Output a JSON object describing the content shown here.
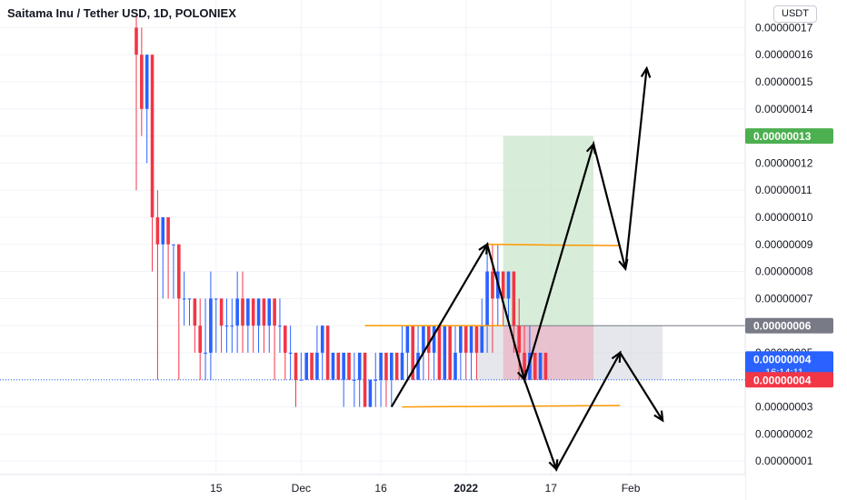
{
  "header": {
    "title": "Saitama Inu / Tether USD, 1D, POLONIEX",
    "currency_button": "USDT"
  },
  "colors": {
    "up": "#2962ff",
    "down": "#f23645",
    "grid": "#f0f3fa",
    "target_zone": "#c8e6c9",
    "stop_zone": "#e8b6c4",
    "orange_line": "#ff9800",
    "last_price_tag": "#2962ff",
    "bid_tag": "#f23645",
    "target_tag": "#4caf50",
    "entry_tag": "#787b86"
  },
  "chart_data": {
    "type": "candlestick",
    "title": "Saitama Inu / Tether USD, 1D, POLONIEX",
    "y_axis": {
      "ticks": [
        "0.00000001",
        "0.00000002",
        "0.00000003",
        "0.00000004",
        "0.00000005",
        "0.00000006",
        "0.00000007",
        "0.00000008",
        "0.00000009",
        "0.00000010",
        "0.00000011",
        "0.00000012",
        "0.00000013",
        "0.00000014",
        "0.00000015",
        "0.00000016",
        "0.00000017"
      ],
      "tick_values": [
        1,
        2,
        3,
        4,
        5,
        6,
        7,
        8,
        9,
        10,
        11,
        12,
        13,
        14,
        15,
        16,
        17
      ],
      "unit_scale": "1e-8 USDT",
      "range": [
        0.5,
        17.3
      ]
    },
    "x_axis": {
      "ticks": [
        {
          "label": "15",
          "bold": false,
          "day": 15
        },
        {
          "label": "Dec",
          "bold": false,
          "day": 31
        },
        {
          "label": "16",
          "bold": false,
          "day": 46
        },
        {
          "label": "2022",
          "bold": true,
          "day": 62
        },
        {
          "label": "17",
          "bold": false,
          "day": 78
        },
        {
          "label": "Feb",
          "bold": false,
          "day": 93
        }
      ]
    },
    "candles": [
      {
        "d": 0,
        "o": 17,
        "h": 17.5,
        "l": 11,
        "c": 16
      },
      {
        "d": 1,
        "o": 16,
        "h": 17,
        "l": 13,
        "c": 14
      },
      {
        "d": 2,
        "o": 14,
        "h": 16,
        "l": 12,
        "c": 16
      },
      {
        "d": 3,
        "o": 16,
        "h": 16,
        "l": 8,
        "c": 10
      },
      {
        "d": 4,
        "o": 10,
        "h": 11,
        "l": 4,
        "c": 9
      },
      {
        "d": 5,
        "o": 9,
        "h": 10,
        "l": 7,
        "c": 10
      },
      {
        "d": 6,
        "o": 10,
        "h": 10,
        "l": 7,
        "c": 9
      },
      {
        "d": 7,
        "o": 9,
        "h": 9,
        "l": 7,
        "c": 9
      },
      {
        "d": 8,
        "o": 9,
        "h": 9,
        "l": 4,
        "c": 7
      },
      {
        "d": 9,
        "o": 7,
        "h": 8,
        "l": 6,
        "c": 7
      },
      {
        "d": 10,
        "o": 7,
        "h": 7,
        "l": 6,
        "c": 7
      },
      {
        "d": 11,
        "o": 7,
        "h": 7,
        "l": 5,
        "c": 6
      },
      {
        "d": 12,
        "o": 6,
        "h": 7,
        "l": 4,
        "c": 5
      },
      {
        "d": 13,
        "o": 5,
        "h": 7,
        "l": 4,
        "c": 5
      },
      {
        "d": 14,
        "o": 5,
        "h": 8,
        "l": 4,
        "c": 7
      },
      {
        "d": 15,
        "o": 7,
        "h": 7,
        "l": 5,
        "c": 7
      },
      {
        "d": 16,
        "o": 7,
        "h": 7,
        "l": 5,
        "c": 6
      },
      {
        "d": 17,
        "o": 6,
        "h": 7,
        "l": 5,
        "c": 6
      },
      {
        "d": 18,
        "o": 6,
        "h": 7,
        "l": 5,
        "c": 6
      },
      {
        "d": 19,
        "o": 6,
        "h": 8,
        "l": 5,
        "c": 7
      },
      {
        "d": 20,
        "o": 7,
        "h": 8,
        "l": 5,
        "c": 6
      },
      {
        "d": 21,
        "o": 6,
        "h": 7,
        "l": 5,
        "c": 7
      },
      {
        "d": 22,
        "o": 7,
        "h": 7,
        "l": 5,
        "c": 6
      },
      {
        "d": 23,
        "o": 6,
        "h": 7,
        "l": 5,
        "c": 7
      },
      {
        "d": 24,
        "o": 7,
        "h": 7,
        "l": 5,
        "c": 6
      },
      {
        "d": 25,
        "o": 6,
        "h": 7,
        "l": 5,
        "c": 7
      },
      {
        "d": 26,
        "o": 7,
        "h": 7,
        "l": 4,
        "c": 6
      },
      {
        "d": 27,
        "o": 6,
        "h": 7,
        "l": 5,
        "c": 6
      },
      {
        "d": 28,
        "o": 6,
        "h": 6,
        "l": 4,
        "c": 5
      },
      {
        "d": 29,
        "o": 5,
        "h": 6,
        "l": 4,
        "c": 5
      },
      {
        "d": 30,
        "o": 5,
        "h": 5,
        "l": 3,
        "c": 4
      },
      {
        "d": 31,
        "o": 4,
        "h": 5,
        "l": 4,
        "c": 4
      },
      {
        "d": 32,
        "o": 4,
        "h": 5,
        "l": 4,
        "c": 5
      },
      {
        "d": 33,
        "o": 5,
        "h": 5,
        "l": 4,
        "c": 4
      },
      {
        "d": 34,
        "o": 4,
        "h": 6,
        "l": 4,
        "c": 5
      },
      {
        "d": 35,
        "o": 5,
        "h": 6,
        "l": 4,
        "c": 6
      },
      {
        "d": 36,
        "o": 6,
        "h": 6,
        "l": 4,
        "c": 4
      },
      {
        "d": 37,
        "o": 4,
        "h": 5,
        "l": 4,
        "c": 5
      },
      {
        "d": 38,
        "o": 5,
        "h": 5,
        "l": 4,
        "c": 4
      },
      {
        "d": 39,
        "o": 4,
        "h": 5,
        "l": 3,
        "c": 5
      },
      {
        "d": 40,
        "o": 5,
        "h": 5,
        "l": 4,
        "c": 4
      },
      {
        "d": 41,
        "o": 4,
        "h": 5,
        "l": 3,
        "c": 4
      },
      {
        "d": 42,
        "o": 4,
        "h": 5,
        "l": 3,
        "c": 5
      },
      {
        "d": 43,
        "o": 5,
        "h": 5,
        "l": 3,
        "c": 3
      },
      {
        "d": 44,
        "o": 3,
        "h": 4,
        "l": 3,
        "c": 4
      },
      {
        "d": 45,
        "o": 4,
        "h": 5,
        "l": 3,
        "c": 4
      },
      {
        "d": 46,
        "o": 4,
        "h": 5,
        "l": 3,
        "c": 5
      },
      {
        "d": 47,
        "o": 5,
        "h": 5,
        "l": 3,
        "c": 4
      },
      {
        "d": 48,
        "o": 4,
        "h": 5,
        "l": 3,
        "c": 5
      },
      {
        "d": 49,
        "o": 5,
        "h": 5,
        "l": 4,
        "c": 4
      },
      {
        "d": 50,
        "o": 4,
        "h": 6,
        "l": 4,
        "c": 5
      },
      {
        "d": 51,
        "o": 5,
        "h": 6,
        "l": 4,
        "c": 6
      },
      {
        "d": 52,
        "o": 6,
        "h": 6,
        "l": 4,
        "c": 4
      },
      {
        "d": 53,
        "o": 4,
        "h": 6,
        "l": 4,
        "c": 5
      },
      {
        "d": 54,
        "o": 5,
        "h": 6,
        "l": 4,
        "c": 6
      },
      {
        "d": 55,
        "o": 6,
        "h": 6,
        "l": 4,
        "c": 5
      },
      {
        "d": 56,
        "o": 5,
        "h": 6,
        "l": 4,
        "c": 6
      },
      {
        "d": 57,
        "o": 6,
        "h": 6,
        "l": 4,
        "c": 4
      },
      {
        "d": 58,
        "o": 4,
        "h": 6,
        "l": 4,
        "c": 6
      },
      {
        "d": 59,
        "o": 6,
        "h": 6,
        "l": 4,
        "c": 4
      },
      {
        "d": 60,
        "o": 4,
        "h": 6,
        "l": 4,
        "c": 5
      },
      {
        "d": 61,
        "o": 5,
        "h": 6,
        "l": 4,
        "c": 6
      },
      {
        "d": 62,
        "o": 6,
        "h": 6,
        "l": 4,
        "c": 5
      },
      {
        "d": 63,
        "o": 5,
        "h": 6,
        "l": 4,
        "c": 6
      },
      {
        "d": 64,
        "o": 6,
        "h": 6,
        "l": 4,
        "c": 5
      },
      {
        "d": 65,
        "o": 5,
        "h": 7,
        "l": 5,
        "c": 6
      },
      {
        "d": 66,
        "o": 6,
        "h": 9,
        "l": 5,
        "c": 8
      },
      {
        "d": 67,
        "o": 8,
        "h": 9,
        "l": 5,
        "c": 7
      },
      {
        "d": 68,
        "o": 7,
        "h": 9,
        "l": 6,
        "c": 8
      },
      {
        "d": 69,
        "o": 8,
        "h": 8,
        "l": 6,
        "c": 7
      },
      {
        "d": 70,
        "o": 7,
        "h": 8,
        "l": 6,
        "c": 8
      },
      {
        "d": 71,
        "o": 8,
        "h": 8,
        "l": 5,
        "c": 6
      },
      {
        "d": 72,
        "o": 6,
        "h": 7,
        "l": 4,
        "c": 5
      },
      {
        "d": 73,
        "o": 5,
        "h": 6,
        "l": 4,
        "c": 4
      },
      {
        "d": 74,
        "o": 4,
        "h": 6,
        "l": 4,
        "c": 5
      },
      {
        "d": 75,
        "o": 5,
        "h": 5,
        "l": 4,
        "c": 4
      },
      {
        "d": 76,
        "o": 4,
        "h": 5,
        "l": 4,
        "c": 5
      },
      {
        "d": 77,
        "o": 5,
        "h": 5,
        "l": 4,
        "c": 4
      }
    ],
    "drawings": {
      "target_zone": {
        "x_from_day": 69,
        "x_to_day": 86,
        "y_from": 6,
        "y_to": 13
      },
      "stop_zone": {
        "x_from_day": 69,
        "x_to_day": 86,
        "y_from": 4,
        "y_to": 6
      },
      "projection_zone": {
        "x_from_day": 64,
        "x_to_day": 99,
        "y_from": 4,
        "y_to": 6
      },
      "orange_lines": [
        {
          "day1": 66,
          "y1": 9.0,
          "day2": 91,
          "y2": 8.95
        },
        {
          "day1": 43,
          "y1": 6.0,
          "day2": 69,
          "y2": 6.0
        },
        {
          "day1": 50,
          "y1": 3.0,
          "day2": 91,
          "y2": 3.05
        }
      ],
      "arrow_paths": [
        [
          [
            48,
            3.0
          ],
          [
            66,
            9.0
          ],
          [
            73,
            4.0
          ],
          [
            86,
            12.7
          ],
          [
            92,
            8.1
          ],
          [
            96,
            15.5
          ]
        ],
        [
          [
            73,
            4.0
          ],
          [
            79,
            0.7
          ],
          [
            91,
            5.0
          ],
          [
            99,
            2.5
          ]
        ]
      ]
    },
    "price_tags": [
      {
        "label": "0.00000013",
        "value": 13,
        "color": "#4caf50"
      },
      {
        "label": "0.00000006",
        "value": 6,
        "color": "#787b86"
      },
      {
        "label": "0.00000004",
        "sublabel": "16:14:11",
        "value": 4.5,
        "color": "#2962ff"
      },
      {
        "label": "0.00000004",
        "value": 4,
        "color": "#f23645"
      }
    ]
  }
}
